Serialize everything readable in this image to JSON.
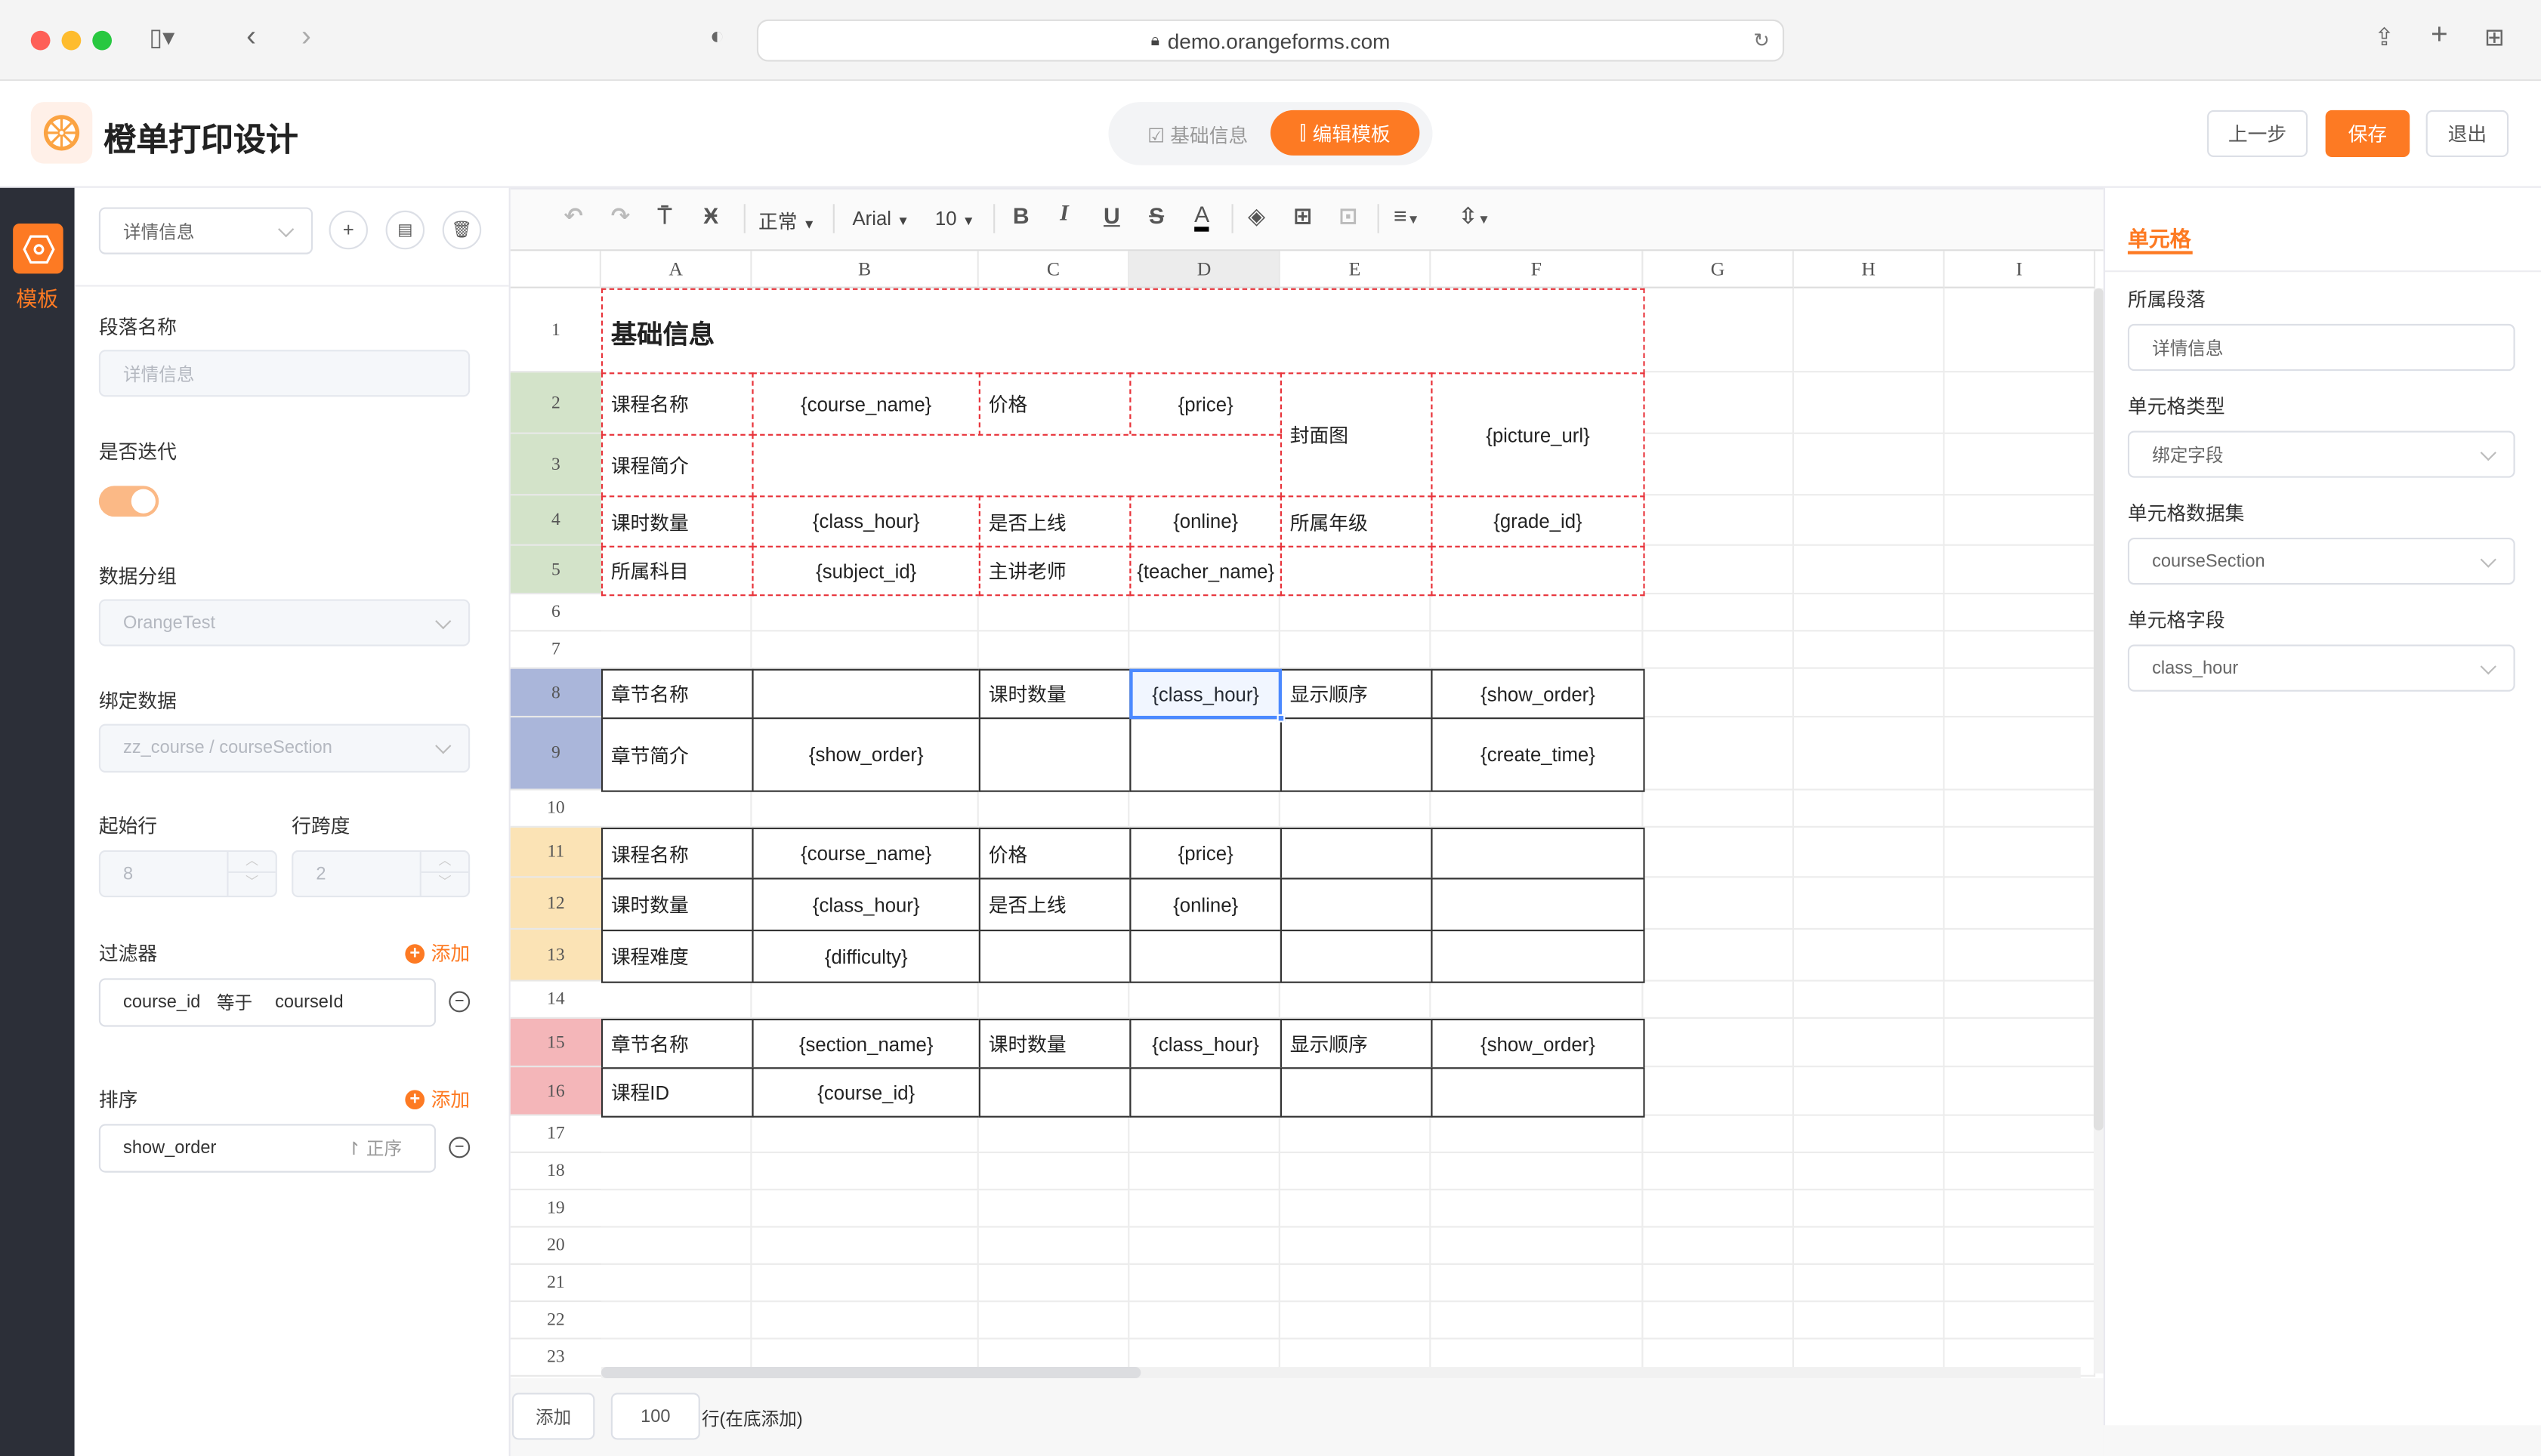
{
  "browser": {
    "url": "demo.orangeforms.com"
  },
  "header": {
    "title": "橙单打印设计",
    "tabs": [
      {
        "label": "基础信息",
        "active": false
      },
      {
        "label": "编辑模板",
        "active": true
      }
    ],
    "prev_label": "上一步",
    "save_label": "保存",
    "exit_label": "退出"
  },
  "colors": {
    "accent": "#fd7a23",
    "sidebar": "#2c2f38"
  },
  "sidebar": {
    "items": [
      {
        "label": "模板",
        "icon": "hexagon-icon",
        "active": true
      }
    ]
  },
  "left_panel": {
    "section_select": "详情信息",
    "section_name_label": "段落名称",
    "section_name_value": "详情信息",
    "iterate_label": "是否迭代",
    "iterate_on": true,
    "group_label": "数据分组",
    "group_value": "OrangeTest",
    "bind_label": "绑定数据",
    "bind_value": "zz_course / courseSection",
    "start_row_label": "起始行",
    "start_row_value": "8",
    "row_span_label": "行跨度",
    "row_span_value": "2",
    "filter_label": "过滤器",
    "filter_add": "添加",
    "filter": {
      "field": "course_id",
      "op": "等于",
      "value": "courseId"
    },
    "sort_label": "排序",
    "sort_add": "添加",
    "sort": {
      "field": "show_order",
      "dir": "正序"
    }
  },
  "toolbar": {
    "style": "正常",
    "font": "Arial",
    "size": "10"
  },
  "sheet": {
    "columns": [
      "A",
      "B",
      "C",
      "D",
      "E",
      "F",
      "G",
      "H",
      "I"
    ],
    "rows": [
      "1",
      "2",
      "3",
      "4",
      "5",
      "6",
      "7",
      "8",
      "9",
      "10",
      "11",
      "12",
      "13",
      "14",
      "15",
      "16",
      "17",
      "18",
      "19",
      "20",
      "21",
      "22",
      "23"
    ],
    "selected": "D8",
    "regions": [
      {
        "rows": [
          1,
          5
        ],
        "row_header_color": "#d3e3c9",
        "header_from": 2,
        "border": "dashed",
        "border_color": "#e8333a"
      },
      {
        "rows": [
          8,
          9
        ],
        "row_header_color": "#aab6da",
        "header_from": 8,
        "border": "solid",
        "border_color": "#333333"
      },
      {
        "rows": [
          11,
          13
        ],
        "row_header_color": "#fbe3b5",
        "header_from": 11,
        "border": "solid",
        "border_color": "#333333"
      },
      {
        "rows": [
          15,
          16
        ],
        "row_header_color": "#f4b6b9",
        "header_from": 15,
        "border": "solid",
        "border_color": "#333333"
      }
    ],
    "cells": [
      {
        "ref": "A1",
        "text": "基础信息",
        "colspan": 6,
        "bold": true
      },
      {
        "ref": "A2",
        "text": "课程名称"
      },
      {
        "ref": "B2",
        "text": "{course_name}"
      },
      {
        "ref": "C2",
        "text": "价格"
      },
      {
        "ref": "D2",
        "text": "{price}"
      },
      {
        "ref": "E2",
        "text": "封面图",
        "rowspan": 2
      },
      {
        "ref": "F2",
        "text": "{picture_url}",
        "rowspan": 2
      },
      {
        "ref": "A3",
        "text": "课程简介"
      },
      {
        "ref": "B3",
        "text": "",
        "colspan": 3
      },
      {
        "ref": "A4",
        "text": "课时数量"
      },
      {
        "ref": "B4",
        "text": "{class_hour}"
      },
      {
        "ref": "C4",
        "text": "是否上线"
      },
      {
        "ref": "D4",
        "text": "{online}"
      },
      {
        "ref": "E4",
        "text": "所属年级"
      },
      {
        "ref": "F4",
        "text": "{grade_id}"
      },
      {
        "ref": "A5",
        "text": "所属科目"
      },
      {
        "ref": "B5",
        "text": "{subject_id}"
      },
      {
        "ref": "C5",
        "text": "主讲老师"
      },
      {
        "ref": "D5",
        "text": "{teacher_name}"
      },
      {
        "ref": "E5",
        "text": ""
      },
      {
        "ref": "F5",
        "text": ""
      },
      {
        "ref": "A8",
        "text": "章节名称"
      },
      {
        "ref": "B8",
        "text": ""
      },
      {
        "ref": "C8",
        "text": "课时数量"
      },
      {
        "ref": "D8",
        "text": "{class_hour}"
      },
      {
        "ref": "E8",
        "text": "显示顺序"
      },
      {
        "ref": "F8",
        "text": "{show_order}"
      },
      {
        "ref": "A9",
        "text": "章节简介"
      },
      {
        "ref": "B9",
        "text": "{show_order}"
      },
      {
        "ref": "C9",
        "text": ""
      },
      {
        "ref": "D9",
        "text": ""
      },
      {
        "ref": "E9",
        "text": ""
      },
      {
        "ref": "F9",
        "text": "{create_time}"
      },
      {
        "ref": "A11",
        "text": "课程名称"
      },
      {
        "ref": "B11",
        "text": "{course_name}"
      },
      {
        "ref": "C11",
        "text": "价格"
      },
      {
        "ref": "D11",
        "text": "{price}"
      },
      {
        "ref": "E11",
        "text": ""
      },
      {
        "ref": "F11",
        "text": ""
      },
      {
        "ref": "A12",
        "text": "课时数量"
      },
      {
        "ref": "B12",
        "text": "{class_hour}"
      },
      {
        "ref": "C12",
        "text": "是否上线"
      },
      {
        "ref": "D12",
        "text": "{online}"
      },
      {
        "ref": "E12",
        "text": ""
      },
      {
        "ref": "F12",
        "text": ""
      },
      {
        "ref": "A13",
        "text": "课程难度"
      },
      {
        "ref": "B13",
        "text": "{difficulty}"
      },
      {
        "ref": "C13",
        "text": ""
      },
      {
        "ref": "D13",
        "text": ""
      },
      {
        "ref": "E13",
        "text": ""
      },
      {
        "ref": "F13",
        "text": ""
      },
      {
        "ref": "A15",
        "text": "章节名称"
      },
      {
        "ref": "B15",
        "text": "{section_name}"
      },
      {
        "ref": "C15",
        "text": "课时数量"
      },
      {
        "ref": "D15",
        "text": "{class_hour}"
      },
      {
        "ref": "E15",
        "text": "显示顺序"
      },
      {
        "ref": "F15",
        "text": "{show_order}"
      },
      {
        "ref": "A16",
        "text": "课程ID"
      },
      {
        "ref": "B16",
        "text": "{course_id}"
      },
      {
        "ref": "C16",
        "text": ""
      },
      {
        "ref": "D16",
        "text": ""
      },
      {
        "ref": "E16",
        "text": ""
      },
      {
        "ref": "F16",
        "text": ""
      }
    ]
  },
  "footer": {
    "add_label": "添加",
    "row_count": "100",
    "suffix": "行(在底添加)"
  },
  "right_panel": {
    "tab": "单元格",
    "fields": [
      {
        "label": "所属段落",
        "value": "详情信息",
        "dropdown": false
      },
      {
        "label": "单元格类型",
        "value": "绑定字段",
        "dropdown": true
      },
      {
        "label": "单元格数据集",
        "value": "courseSection",
        "dropdown": true
      },
      {
        "label": "单元格字段",
        "value": "class_hour",
        "dropdown": true
      }
    ]
  }
}
